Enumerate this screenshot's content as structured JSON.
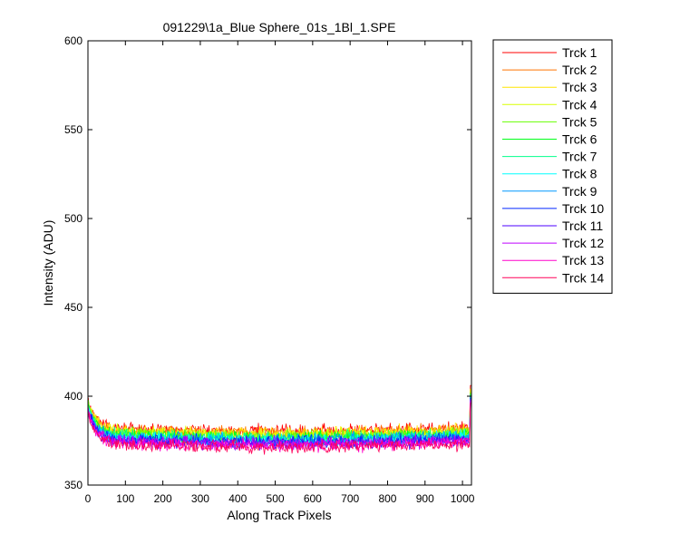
{
  "chart_data": {
    "type": "line",
    "title": "091229\\1a_Blue Sphere_01s_1Bl_1.SPE",
    "xlabel": "Along Track Pixels",
    "ylabel": "Intensity (ADU)",
    "xlim": [
      0,
      1024
    ],
    "ylim": [
      350,
      600
    ],
    "xticks": [
      0,
      100,
      200,
      300,
      400,
      500,
      600,
      700,
      800,
      900,
      1000
    ],
    "yticks": [
      350,
      400,
      450,
      500,
      550,
      600
    ],
    "grid": false,
    "legend_position": "outside-right",
    "x_range": [
      1,
      1024
    ],
    "series": [
      {
        "name": "Trck 1",
        "color": "#ff0000",
        "start": 397,
        "mean": 382,
        "noise": 2.2,
        "end": 406
      },
      {
        "name": "Trck 2",
        "color": "#ff7300",
        "start": 396,
        "mean": 381,
        "noise": 2.2,
        "end": 404
      },
      {
        "name": "Trck 3",
        "color": "#ffe600",
        "start": 396,
        "mean": 381,
        "noise": 2.2,
        "end": 404
      },
      {
        "name": "Trck 4",
        "color": "#d9ff00",
        "start": 395,
        "mean": 380,
        "noise": 2.2,
        "end": 403
      },
      {
        "name": "Trck 5",
        "color": "#66ff00",
        "start": 395,
        "mean": 379,
        "noise": 2.2,
        "end": 402
      },
      {
        "name": "Trck 6",
        "color": "#00ff1a",
        "start": 394,
        "mean": 378,
        "noise": 2.2,
        "end": 401
      },
      {
        "name": "Trck 7",
        "color": "#00ff8c",
        "start": 394,
        "mean": 378,
        "noise": 2.2,
        "end": 401
      },
      {
        "name": "Trck 8",
        "color": "#00ffff",
        "start": 393,
        "mean": 377,
        "noise": 2.2,
        "end": 400
      },
      {
        "name": "Trck 9",
        "color": "#0099ff",
        "start": 393,
        "mean": 377,
        "noise": 2.2,
        "end": 400
      },
      {
        "name": "Trck 10",
        "color": "#0026ff",
        "start": 392,
        "mean": 376,
        "noise": 2.2,
        "end": 399
      },
      {
        "name": "Trck 11",
        "color": "#4d00ff",
        "start": 392,
        "mean": 375,
        "noise": 2.2,
        "end": 398
      },
      {
        "name": "Trck 12",
        "color": "#bf00ff",
        "start": 391,
        "mean": 375,
        "noise": 2.2,
        "end": 398
      },
      {
        "name": "Trck 13",
        "color": "#ff00cc",
        "start": 391,
        "mean": 374,
        "noise": 2.2,
        "end": 397
      },
      {
        "name": "Trck 14",
        "color": "#ff0059",
        "start": 390,
        "mean": 373,
        "noise": 2.2,
        "end": 396
      }
    ]
  }
}
